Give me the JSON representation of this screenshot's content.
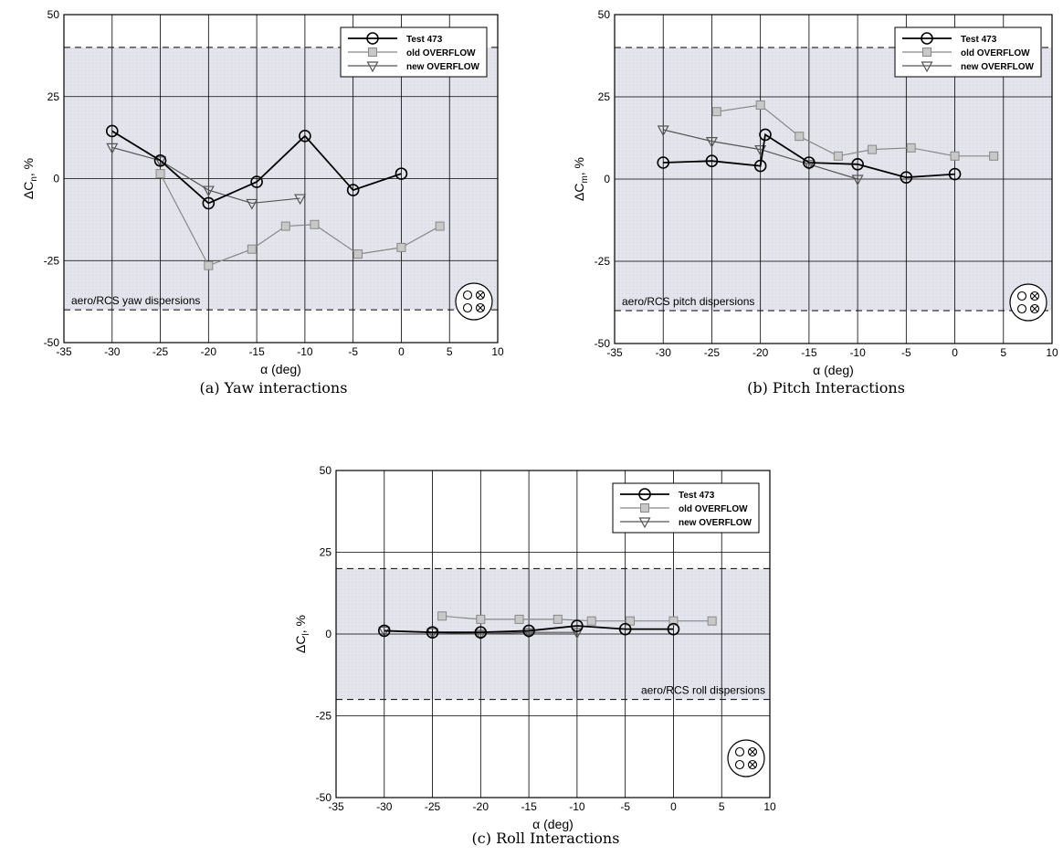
{
  "chart_data": [
    {
      "type": "line",
      "caption": "(a)  Yaw interactions",
      "xlabel": "α (deg)",
      "ylabel_base": "ΔC",
      "ylabel_sub": "n",
      "ylabel_unit": ", %",
      "xlim": [
        -35,
        10
      ],
      "ylim": [
        -50,
        50
      ],
      "xticks": [
        -35,
        -30,
        -25,
        -20,
        -15,
        -10,
        -5,
        0,
        5,
        10
      ],
      "yticks": [
        -50,
        -25,
        0,
        25,
        50
      ],
      "band": [
        -40,
        40
      ],
      "band_label": "aero/RCS yaw dispersions",
      "grid": true,
      "legend": "top-right",
      "icon": "thruster-pattern-icon",
      "series": [
        {
          "name": "Test 473",
          "marker": "circle",
          "color": "#000000",
          "x": [
            -30,
            -25,
            -20,
            -15,
            -10,
            -5,
            0
          ],
          "y": [
            14.5,
            5.5,
            -7.5,
            -1,
            13,
            -3.5,
            1.5
          ]
        },
        {
          "name": "old OVERFLOW",
          "marker": "square",
          "color": "#888888",
          "x": [
            -25,
            -20,
            -15.5,
            -12,
            -9,
            -4.5,
            0,
            4
          ],
          "y": [
            1.5,
            -26.5,
            -21.5,
            -14.5,
            -14,
            -23,
            -21,
            -14.5
          ]
        },
        {
          "name": "new OVERFLOW",
          "marker": "triangle",
          "color": "#555555",
          "x": [
            -30,
            -25,
            -20,
            -15.5,
            -10.5
          ],
          "y": [
            9.5,
            5.5,
            -3.5,
            -7.5,
            -6
          ]
        }
      ]
    },
    {
      "type": "line",
      "caption": "(b)  Pitch Interactions",
      "xlabel": "α (deg)",
      "ylabel_base": "ΔC",
      "ylabel_sub": "m",
      "ylabel_unit": ", %",
      "xlim": [
        -35,
        10
      ],
      "ylim": [
        -50,
        50
      ],
      "xticks": [
        -35,
        -30,
        -25,
        -20,
        -15,
        -10,
        -5,
        0,
        5,
        10
      ],
      "yticks": [
        -50,
        -25,
        0,
        25,
        50
      ],
      "band": [
        -40,
        40
      ],
      "band_label": "aero/RCS pitch dispersions",
      "grid": true,
      "legend": "top-right",
      "icon": "thruster-pattern-icon",
      "series": [
        {
          "name": "Test 473",
          "marker": "circle",
          "color": "#000000",
          "x": [
            -30,
            -25,
            -20,
            -19.5,
            -15,
            -10,
            -5,
            0
          ],
          "y": [
            5,
            5.5,
            4,
            13.5,
            5,
            4.5,
            0.5,
            1.5
          ]
        },
        {
          "name": "old OVERFLOW",
          "marker": "square",
          "color": "#888888",
          "x": [
            -24.5,
            -20,
            -16,
            -12,
            -8.5,
            -4.5,
            0,
            4
          ],
          "y": [
            20.5,
            22.5,
            13,
            7,
            9,
            9.5,
            7,
            7
          ]
        },
        {
          "name": "new OVERFLOW",
          "marker": "triangle",
          "color": "#555555",
          "x": [
            -30,
            -25,
            -20,
            -15,
            -10
          ],
          "y": [
            15,
            11.5,
            9,
            4.5,
            0
          ]
        }
      ]
    },
    {
      "type": "line",
      "caption": "(c)  Roll Interactions",
      "xlabel": "α (deg)",
      "ylabel_base": "ΔC",
      "ylabel_sub": "l",
      "ylabel_unit": ", %",
      "xlim": [
        -35,
        10
      ],
      "ylim": [
        -50,
        50
      ],
      "xticks": [
        -35,
        -30,
        -25,
        -20,
        -15,
        -10,
        -5,
        0,
        5,
        10
      ],
      "yticks": [
        -50,
        -25,
        0,
        25,
        50
      ],
      "band": [
        -20,
        20
      ],
      "band_label": "aero/RCS roll dispersions",
      "grid": true,
      "legend": "top-right",
      "icon": "thruster-pattern-icon",
      "series": [
        {
          "name": "Test 473",
          "marker": "circle",
          "color": "#000000",
          "x": [
            -30,
            -25,
            -20,
            -15,
            -10,
            -5,
            0
          ],
          "y": [
            1,
            0.5,
            0.5,
            1,
            2.5,
            1.5,
            1.5
          ]
        },
        {
          "name": "old OVERFLOW",
          "marker": "square",
          "color": "#888888",
          "x": [
            -24,
            -20,
            -16,
            -12,
            -8.5,
            -4.5,
            0,
            4
          ],
          "y": [
            5.5,
            4.5,
            4.5,
            4.5,
            4,
            4,
            4,
            4
          ]
        },
        {
          "name": "new OVERFLOW",
          "marker": "triangle",
          "color": "#555555",
          "x": [
            -30,
            -25,
            -20,
            -15,
            -10
          ],
          "y": [
            1,
            0.5,
            0,
            0.5,
            0.5
          ]
        }
      ]
    }
  ]
}
